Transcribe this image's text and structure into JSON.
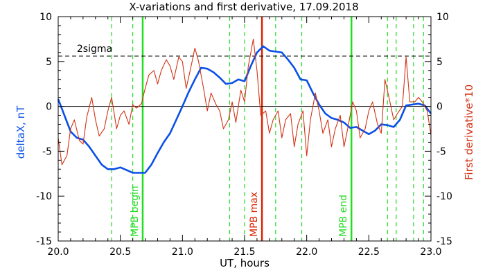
{
  "chart_data": {
    "type": "line",
    "title": "X-variations and first derivative, 17.09.2018",
    "xlabel": "UT, hours",
    "ylabel_left": "deltaX, nT",
    "ylabel_right": "First derivative*10",
    "xlim": [
      20.0,
      23.0
    ],
    "ylim_left": [
      -15,
      10
    ],
    "ylim_right": [
      -15,
      10
    ],
    "x_ticks": [
      "20.0",
      "20.5",
      "21.0",
      "21.5",
      "22.0",
      "22.5",
      "23.0"
    ],
    "y_ticks_left": [
      "10",
      "5",
      "0",
      "-5",
      "-10",
      "-15"
    ],
    "y_ticks_right": [
      "10",
      "5",
      "0",
      "-5",
      "-10",
      "-15"
    ],
    "colors": {
      "deltaX": "#0a50e6",
      "derivative": "#d23214",
      "markers": "#22dd22",
      "max": "#dd2200"
    },
    "reference_lines": {
      "zero": 0,
      "two_sigma": 5.6,
      "two_sigma_label": "2sigma"
    },
    "vertical_lines": {
      "dashed_green": [
        20.43,
        20.6,
        21.38,
        21.5,
        21.75,
        21.96,
        22.65,
        22.72,
        22.86,
        22.94
      ],
      "solid_green": [
        20.68,
        22.36
      ],
      "solid_red": [
        21.64
      ]
    },
    "annotations": [
      {
        "text": "MPB begin",
        "x": 20.68,
        "color": "#22dd22"
      },
      {
        "text": "MPB max",
        "x": 21.64,
        "color": "#dd2200"
      },
      {
        "text": "MPB end",
        "x": 22.36,
        "color": "#22dd22"
      }
    ],
    "series": [
      {
        "name": "deltaX",
        "axis": "left",
        "x": [
          20.0,
          20.05,
          20.1,
          20.15,
          20.2,
          20.25,
          20.3,
          20.35,
          20.4,
          20.45,
          20.5,
          20.55,
          20.6,
          20.65,
          20.7,
          20.75,
          20.8,
          20.85,
          20.9,
          20.95,
          21.0,
          21.05,
          21.1,
          21.15,
          21.2,
          21.25,
          21.3,
          21.35,
          21.4,
          21.45,
          21.5,
          21.55,
          21.6,
          21.65,
          21.7,
          21.75,
          21.8,
          21.85,
          21.9,
          21.95,
          22.0,
          22.05,
          22.1,
          22.15,
          22.2,
          22.25,
          22.3,
          22.35,
          22.4,
          22.45,
          22.5,
          22.55,
          22.6,
          22.65,
          22.7,
          22.75,
          22.8,
          22.85,
          22.9,
          22.95,
          23.0
        ],
        "values": [
          0.8,
          -1.0,
          -2.8,
          -3.5,
          -3.7,
          -4.5,
          -5.5,
          -6.5,
          -7.0,
          -7.0,
          -6.8,
          -7.1,
          -7.4,
          -7.4,
          -7.4,
          -6.5,
          -5.2,
          -4.0,
          -3.0,
          -1.5,
          0.0,
          1.6,
          3.0,
          4.3,
          4.2,
          3.8,
          3.2,
          2.5,
          2.6,
          3.0,
          2.8,
          4.5,
          6.0,
          6.7,
          6.2,
          6.1,
          6.0,
          5.2,
          4.3,
          3.0,
          2.9,
          1.5,
          0.2,
          -0.8,
          -1.3,
          -1.5,
          -1.8,
          -2.4,
          -2.3,
          -2.7,
          -3.1,
          -2.7,
          -2.0,
          -2.1,
          -2.3,
          -1.5,
          0.1,
          0.2,
          0.3,
          0.1,
          -0.8
        ]
      },
      {
        "name": "derivative",
        "axis": "right",
        "x": [
          20.0,
          20.03,
          20.07,
          20.1,
          20.13,
          20.17,
          20.2,
          20.23,
          20.27,
          20.3,
          20.33,
          20.37,
          20.4,
          20.43,
          20.47,
          20.5,
          20.53,
          20.57,
          20.6,
          20.63,
          20.67,
          20.7,
          20.73,
          20.77,
          20.8,
          20.83,
          20.87,
          20.9,
          20.93,
          20.97,
          21.0,
          21.03,
          21.07,
          21.1,
          21.13,
          21.17,
          21.2,
          21.23,
          21.27,
          21.3,
          21.33,
          21.37,
          21.4,
          21.43,
          21.47,
          21.5,
          21.53,
          21.57,
          21.6,
          21.63,
          21.67,
          21.7,
          21.73,
          21.77,
          21.8,
          21.83,
          21.87,
          21.9,
          21.93,
          21.97,
          22.0,
          22.03,
          22.07,
          22.1,
          22.13,
          22.17,
          22.2,
          22.23,
          22.27,
          22.3,
          22.33,
          22.37,
          22.4,
          22.43,
          22.47,
          22.5,
          22.53,
          22.57,
          22.6,
          22.63,
          22.67,
          22.7,
          22.73,
          22.77,
          22.8,
          22.83,
          22.87,
          22.9,
          22.93,
          22.97,
          23.0
        ],
        "values": [
          -3.5,
          -6.5,
          -5.5,
          -2.5,
          -1.5,
          -3.8,
          -4.2,
          -1.2,
          1.0,
          -1.5,
          -3.3,
          -2.5,
          -0.5,
          1.0,
          -2.5,
          -1.0,
          -0.5,
          -2.0,
          0.2,
          -0.2,
          0.3,
          2.0,
          3.5,
          4.0,
          2.5,
          4.0,
          5.2,
          4.5,
          3.0,
          5.5,
          5.0,
          2.0,
          4.5,
          6.5,
          5.0,
          2.0,
          -0.5,
          1.5,
          0.2,
          -0.5,
          -2.5,
          -1.5,
          0.5,
          -1.8,
          1.8,
          0.5,
          4.5,
          7.5,
          4.0,
          -1.0,
          -0.5,
          -3.0,
          -1.5,
          -0.5,
          -3.5,
          -1.5,
          -0.8,
          -4.5,
          -2.0,
          -0.5,
          -5.5,
          -1.5,
          1.5,
          -0.5,
          -3.0,
          -1.5,
          -4.5,
          -2.5,
          -1.0,
          -4.5,
          -2.5,
          0.5,
          -0.5,
          -3.5,
          -2.5,
          -0.5,
          0.5,
          -2.0,
          -3.0,
          3.0,
          0.5,
          -1.5,
          -0.8,
          0.0,
          5.5,
          0.5,
          0.5,
          1.0,
          0.5,
          -0.5,
          -3.2
        ]
      }
    ]
  }
}
